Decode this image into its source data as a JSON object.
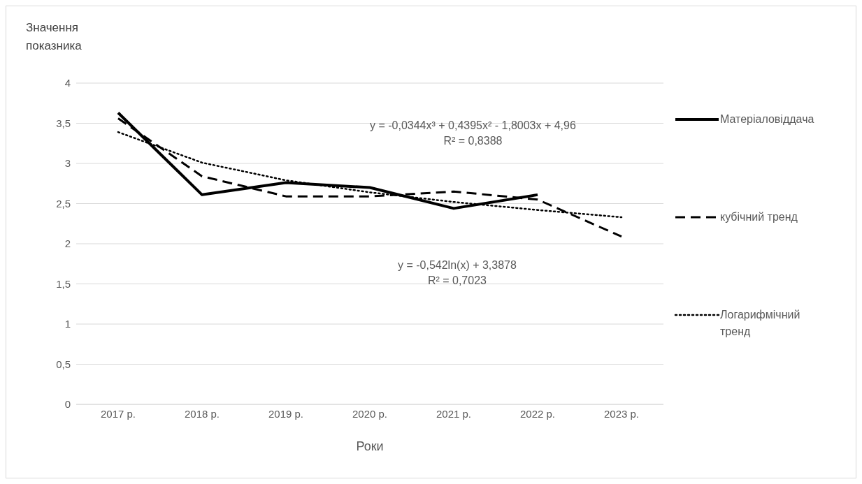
{
  "chart_data": {
    "type": "line",
    "xlabel": "Роки",
    "ylabel": "Значення показника",
    "categories": [
      "2017 р.",
      "2018 р.",
      "2019 р.",
      "2020 р.",
      "2021 р.",
      "2022 р.",
      "2023 р."
    ],
    "series": [
      {
        "name": "Матеріаловіддача",
        "color": "#000000",
        "line_style": "solid",
        "values": [
          3.63,
          2.61,
          2.76,
          2.7,
          2.44,
          2.61,
          null
        ]
      },
      {
        "name": "кубічний  тренд",
        "color": "#000000",
        "line_style": "dashed",
        "values": [
          3.56,
          2.84,
          2.59,
          2.59,
          2.65,
          2.55,
          2.09
        ]
      },
      {
        "name": "Логарифмічний тренд",
        "color": "#000000",
        "line_style": "dotted",
        "values": [
          3.39,
          3.01,
          2.79,
          2.64,
          2.52,
          2.42,
          2.33
        ]
      }
    ],
    "ylim": [
      0,
      4
    ],
    "yticks": [
      0,
      {
        "value": 0.5,
        "label": "0,5"
      },
      1,
      {
        "value": 1.5,
        "label": "1,5"
      },
      2,
      {
        "value": 2.5,
        "label": "2,5"
      },
      3,
      {
        "value": 3.5,
        "label": "3,5"
      },
      4
    ],
    "grid": "y",
    "legend": "right",
    "marker": "none",
    "annotations": [
      "y = -0,0344x³ + 0,4395x² - 1,8003x + 4,96\nR² = 0,8388",
      "y = -0,542ln(x) + 3,3878\nR² = 0,7023"
    ]
  }
}
